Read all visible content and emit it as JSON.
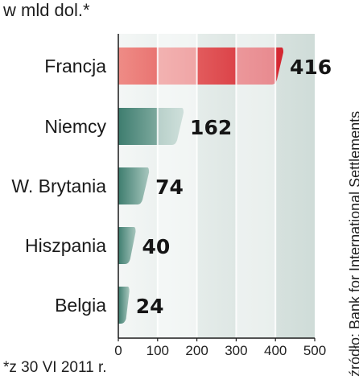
{
  "chart_data": {
    "type": "bar",
    "orientation": "horizontal",
    "unit_label": "w mld dol.*",
    "categories": [
      "Francja",
      "Niemcy",
      "W. Brytania",
      "Hiszpania",
      "Belgia"
    ],
    "values": [
      416,
      162,
      74,
      40,
      24
    ],
    "value_labels": [
      "416",
      "162",
      "74",
      "40",
      "24"
    ],
    "highlight_index": 0,
    "xlim": [
      0,
      500
    ],
    "xticks": [
      "0",
      "100",
      "200",
      "300",
      "400",
      "500"
    ],
    "grid": true,
    "footnote": "*z 30 VI 2011 r.",
    "source": "źródło: Bank for International Settlements"
  },
  "colors": {
    "highlight_bar": "#d42630",
    "highlight_bar_light": "#ef8c86",
    "bar": "#3e7d6f",
    "bar_light": "#a7c6bd",
    "highlight_value": "#d42630",
    "value": "#151515",
    "panel_light": "#f4f7f6",
    "panel_dark": "#cfdcd8",
    "axis": "#1a1a1a"
  }
}
